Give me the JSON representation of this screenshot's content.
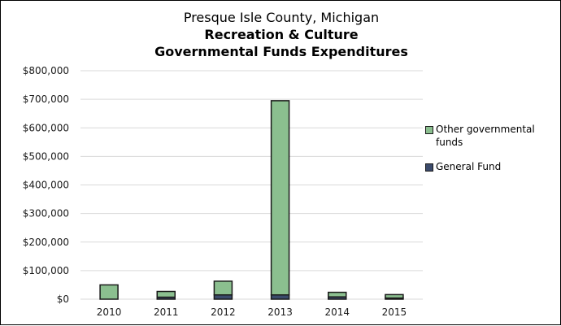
{
  "chart_data": {
    "type": "bar",
    "stacked": true,
    "title": "Presque Isle County, Michigan",
    "subtitle_lines": [
      "Recreation & Culture",
      "Governmental Funds Expenditures"
    ],
    "xlabel": "",
    "ylabel": "",
    "categories": [
      "2010",
      "2011",
      "2012",
      "2013",
      "2014",
      "2015"
    ],
    "series": [
      {
        "name": "General Fund",
        "color": "#3b4a6b",
        "values": [
          0,
          7000,
          15000,
          15000,
          8000,
          4000
        ]
      },
      {
        "name": "Other governmental funds",
        "color": "#8bbf8f",
        "values": [
          50000,
          20000,
          48000,
          680000,
          16000,
          12000
        ]
      }
    ],
    "ylim": [
      0,
      800000
    ],
    "yticks": [
      0,
      100000,
      200000,
      300000,
      400000,
      500000,
      600000,
      700000,
      800000
    ],
    "ytick_labels": [
      "$0",
      "$100,000",
      "$200,000",
      "$300,000",
      "$400,000",
      "$500,000",
      "$600,000",
      "$700,000",
      "$800,000"
    ],
    "grid": true,
    "legend": {
      "position": "right",
      "entries": [
        "Other governmental funds",
        "General Fund"
      ]
    }
  }
}
